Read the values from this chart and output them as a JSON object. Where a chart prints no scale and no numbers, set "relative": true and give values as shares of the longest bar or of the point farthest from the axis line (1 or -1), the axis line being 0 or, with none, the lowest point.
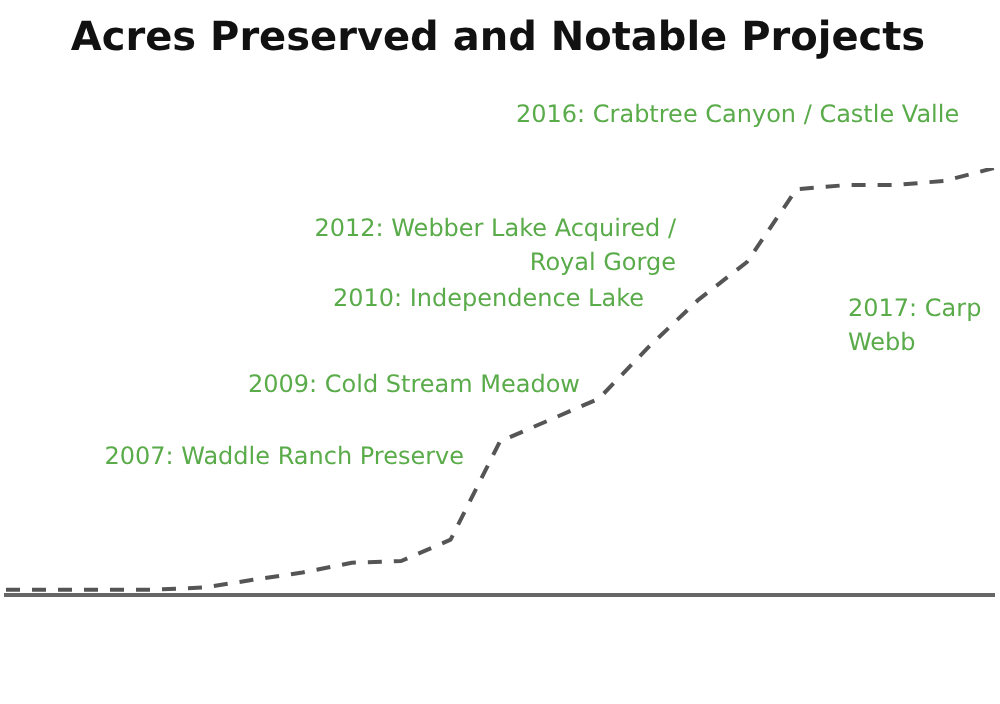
{
  "chart_data": {
    "type": "line",
    "title": "Acres Preserved and Notable Projects",
    "relative": true,
    "categories": [
      null,
      null,
      null,
      null,
      null,
      null,
      null,
      null,
      null,
      null,
      null,
      null,
      null,
      null,
      null,
      null,
      null,
      null,
      null,
      null,
      null
    ],
    "series": [
      {
        "color": "#555555",
        "values": [
          0.013,
          0.013,
          0.013,
          0.013,
          0.018,
          0.036,
          0.053,
          0.076,
          0.08,
          0.13,
          0.36,
          0.41,
          0.46,
          0.58,
          0.69,
          0.78,
          0.95,
          0.96,
          0.96,
          0.97,
          1
        ]
      }
    ],
    "line_style": "dashed",
    "marker": "none",
    "grid": false,
    "legend": false,
    "annotations": [
      "2016: Crabtree Canyon / Castle Valle",
      "2012: Webber Lake Acquired /\nRoyal Gorge",
      "2010: Independence Lake",
      "2009: Cold Stream Meadow",
      "2007: Waddle Ranch Preserve",
      "2017: Carp\nWebb"
    ]
  }
}
